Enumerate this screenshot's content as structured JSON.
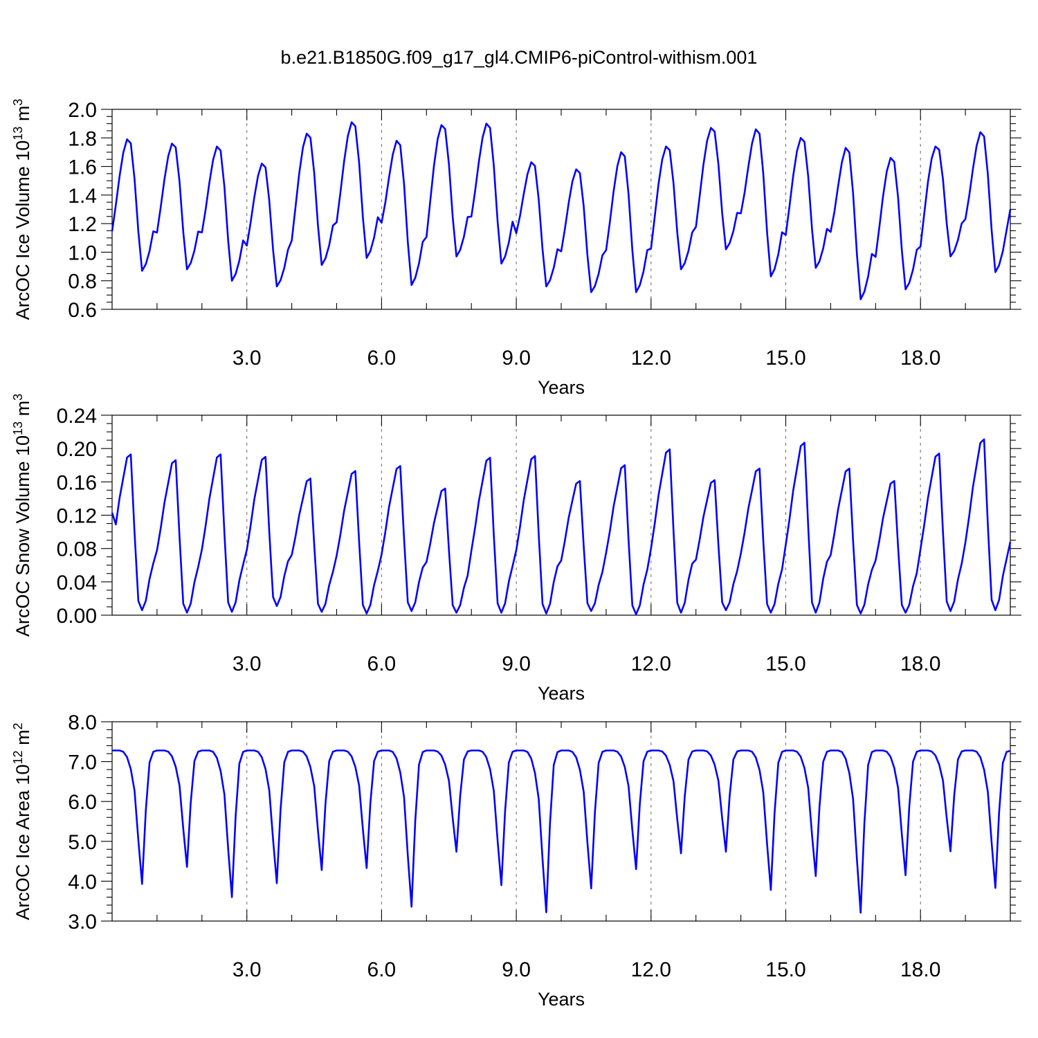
{
  "title": "b.e21.B1850G.f09_g17_gl4.CMIP6-piControl-withism.001",
  "colors": {
    "line": "#0000ff",
    "frame": "#000000",
    "grid": "#666666"
  },
  "chart_data": [
    {
      "type": "line",
      "xlabel": "Years",
      "ylabel": "ArcOC Ice Volume 10",
      "ylabel_exp": "13",
      "ylabel_unit": " m",
      "ylabel_unit_exp": "3",
      "xlim": [
        0,
        20
      ],
      "ylim": [
        0.6,
        2.0
      ],
      "xticks": [
        3,
        6,
        9,
        12,
        15,
        18
      ],
      "xtick_labels": [
        "3.0",
        "6.0",
        "9.0",
        "12.0",
        "15.0",
        "18.0"
      ],
      "yticks": [
        0.6,
        0.8,
        1.0,
        1.2,
        1.4,
        1.6,
        1.8,
        2.0
      ],
      "ytick_labels": [
        "0.6",
        "0.8",
        "1.0",
        "1.2",
        "1.4",
        "1.6",
        "1.8",
        "2.0"
      ],
      "grid_x": true,
      "annual": {
        "min": [
          0.87,
          0.88,
          0.8,
          0.76,
          0.91,
          0.96,
          0.77,
          0.97,
          0.92,
          0.76,
          0.72,
          0.72,
          0.88,
          1.02,
          0.83,
          0.89,
          0.67,
          0.74,
          0.97,
          0.86
        ],
        "max": [
          1.79,
          1.76,
          1.74,
          1.62,
          1.83,
          1.91,
          1.78,
          1.89,
          1.9,
          1.63,
          1.58,
          1.7,
          1.74,
          1.87,
          1.86,
          1.8,
          1.73,
          1.66,
          1.74,
          1.84
        ]
      },
      "last": 1.3
    },
    {
      "type": "line",
      "xlabel": "Years",
      "ylabel": "ArcOC Snow Volume 10",
      "ylabel_exp": "13",
      "ylabel_unit": " m",
      "ylabel_unit_exp": "3",
      "xlim": [
        0,
        20
      ],
      "ylim": [
        0.0,
        0.24
      ],
      "xticks": [
        3,
        6,
        9,
        12,
        15,
        18
      ],
      "xtick_labels": [
        "3.0",
        "6.0",
        "9.0",
        "12.0",
        "15.0",
        "18.0"
      ],
      "yticks": [
        0.0,
        0.04,
        0.08,
        0.12,
        0.16,
        0.2,
        0.24
      ],
      "ytick_labels": [
        "0.00",
        "0.04",
        "0.08",
        "0.12",
        "0.16",
        "0.20",
        "0.24"
      ],
      "grid_x": true,
      "annual": {
        "min": [
          0.006,
          0.003,
          0.004,
          0.011,
          0.004,
          0.002,
          0.005,
          0.003,
          0.003,
          0.002,
          0.005,
          0.001,
          0.003,
          0.006,
          0.003,
          0.003,
          0.002,
          0.003,
          0.005,
          0.006
        ],
        "max": [
          0.193,
          0.186,
          0.193,
          0.19,
          0.164,
          0.173,
          0.179,
          0.152,
          0.189,
          0.191,
          0.161,
          0.18,
          0.199,
          0.162,
          0.176,
          0.207,
          0.176,
          0.161,
          0.194,
          0.211
        ]
      },
      "first": 0.123,
      "last": 0.088
    },
    {
      "type": "line",
      "xlabel": "Years",
      "ylabel": "ArcOC Ice Area 10",
      "ylabel_exp": "12",
      "ylabel_unit": " m",
      "ylabel_unit_exp": "2",
      "xlim": [
        0,
        20
      ],
      "ylim": [
        3.0,
        8.0
      ],
      "xticks": [
        3,
        6,
        9,
        12,
        15,
        18
      ],
      "xtick_labels": [
        "3.0",
        "6.0",
        "9.0",
        "12.0",
        "15.0",
        "18.0"
      ],
      "yticks": [
        3.0,
        4.0,
        5.0,
        6.0,
        7.0,
        8.0
      ],
      "ytick_labels": [
        "3.0",
        "4.0",
        "5.0",
        "6.0",
        "7.0",
        "8.0"
      ],
      "grid_x": true,
      "annual": {
        "min": [
          3.93,
          4.36,
          3.6,
          3.95,
          4.28,
          4.33,
          3.36,
          4.74,
          3.9,
          3.22,
          3.82,
          4.3,
          4.7,
          4.74,
          3.78,
          4.13,
          3.21,
          4.15,
          4.75,
          3.83
        ],
        "max": [
          7.28,
          7.28,
          7.28,
          7.28,
          7.28,
          7.28,
          7.28,
          7.28,
          7.28,
          7.28,
          7.28,
          7.28,
          7.28,
          7.28,
          7.28,
          7.28,
          7.28,
          7.28,
          7.28,
          7.28
        ]
      },
      "last": 7.27
    }
  ]
}
